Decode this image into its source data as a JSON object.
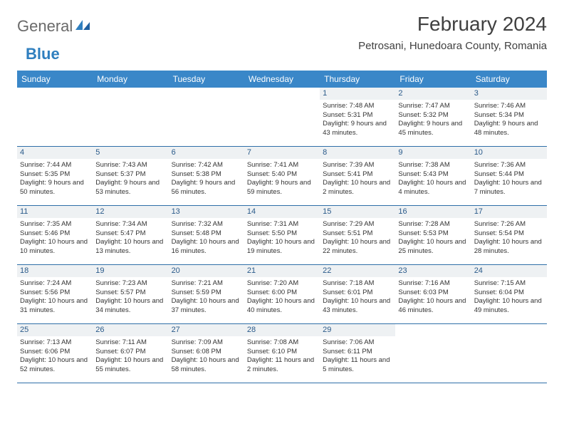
{
  "logo": {
    "part1": "General",
    "part2": "Blue"
  },
  "title": "February 2024",
  "location": "Petrosani, Hunedoara County, Romania",
  "colors": {
    "header_bg": "#3a87c8",
    "header_text": "#ffffff",
    "daynum_bg": "#eef1f3",
    "daynum_text": "#2a5a8a",
    "border": "#2f6fa8",
    "body_text": "#333333",
    "logo_gray": "#6a6a6a",
    "logo_blue": "#2f7fbf"
  },
  "day_headers": [
    "Sunday",
    "Monday",
    "Tuesday",
    "Wednesday",
    "Thursday",
    "Friday",
    "Saturday"
  ],
  "weeks": [
    [
      {
        "n": "",
        "sunrise": "",
        "sunset": "",
        "daylight": ""
      },
      {
        "n": "",
        "sunrise": "",
        "sunset": "",
        "daylight": ""
      },
      {
        "n": "",
        "sunrise": "",
        "sunset": "",
        "daylight": ""
      },
      {
        "n": "",
        "sunrise": "",
        "sunset": "",
        "daylight": ""
      },
      {
        "n": "1",
        "sunrise": "Sunrise: 7:48 AM",
        "sunset": "Sunset: 5:31 PM",
        "daylight": "Daylight: 9 hours and 43 minutes."
      },
      {
        "n": "2",
        "sunrise": "Sunrise: 7:47 AM",
        "sunset": "Sunset: 5:32 PM",
        "daylight": "Daylight: 9 hours and 45 minutes."
      },
      {
        "n": "3",
        "sunrise": "Sunrise: 7:46 AM",
        "sunset": "Sunset: 5:34 PM",
        "daylight": "Daylight: 9 hours and 48 minutes."
      }
    ],
    [
      {
        "n": "4",
        "sunrise": "Sunrise: 7:44 AM",
        "sunset": "Sunset: 5:35 PM",
        "daylight": "Daylight: 9 hours and 50 minutes."
      },
      {
        "n": "5",
        "sunrise": "Sunrise: 7:43 AM",
        "sunset": "Sunset: 5:37 PM",
        "daylight": "Daylight: 9 hours and 53 minutes."
      },
      {
        "n": "6",
        "sunrise": "Sunrise: 7:42 AM",
        "sunset": "Sunset: 5:38 PM",
        "daylight": "Daylight: 9 hours and 56 minutes."
      },
      {
        "n": "7",
        "sunrise": "Sunrise: 7:41 AM",
        "sunset": "Sunset: 5:40 PM",
        "daylight": "Daylight: 9 hours and 59 minutes."
      },
      {
        "n": "8",
        "sunrise": "Sunrise: 7:39 AM",
        "sunset": "Sunset: 5:41 PM",
        "daylight": "Daylight: 10 hours and 2 minutes."
      },
      {
        "n": "9",
        "sunrise": "Sunrise: 7:38 AM",
        "sunset": "Sunset: 5:43 PM",
        "daylight": "Daylight: 10 hours and 4 minutes."
      },
      {
        "n": "10",
        "sunrise": "Sunrise: 7:36 AM",
        "sunset": "Sunset: 5:44 PM",
        "daylight": "Daylight: 10 hours and 7 minutes."
      }
    ],
    [
      {
        "n": "11",
        "sunrise": "Sunrise: 7:35 AM",
        "sunset": "Sunset: 5:46 PM",
        "daylight": "Daylight: 10 hours and 10 minutes."
      },
      {
        "n": "12",
        "sunrise": "Sunrise: 7:34 AM",
        "sunset": "Sunset: 5:47 PM",
        "daylight": "Daylight: 10 hours and 13 minutes."
      },
      {
        "n": "13",
        "sunrise": "Sunrise: 7:32 AM",
        "sunset": "Sunset: 5:48 PM",
        "daylight": "Daylight: 10 hours and 16 minutes."
      },
      {
        "n": "14",
        "sunrise": "Sunrise: 7:31 AM",
        "sunset": "Sunset: 5:50 PM",
        "daylight": "Daylight: 10 hours and 19 minutes."
      },
      {
        "n": "15",
        "sunrise": "Sunrise: 7:29 AM",
        "sunset": "Sunset: 5:51 PM",
        "daylight": "Daylight: 10 hours and 22 minutes."
      },
      {
        "n": "16",
        "sunrise": "Sunrise: 7:28 AM",
        "sunset": "Sunset: 5:53 PM",
        "daylight": "Daylight: 10 hours and 25 minutes."
      },
      {
        "n": "17",
        "sunrise": "Sunrise: 7:26 AM",
        "sunset": "Sunset: 5:54 PM",
        "daylight": "Daylight: 10 hours and 28 minutes."
      }
    ],
    [
      {
        "n": "18",
        "sunrise": "Sunrise: 7:24 AM",
        "sunset": "Sunset: 5:56 PM",
        "daylight": "Daylight: 10 hours and 31 minutes."
      },
      {
        "n": "19",
        "sunrise": "Sunrise: 7:23 AM",
        "sunset": "Sunset: 5:57 PM",
        "daylight": "Daylight: 10 hours and 34 minutes."
      },
      {
        "n": "20",
        "sunrise": "Sunrise: 7:21 AM",
        "sunset": "Sunset: 5:59 PM",
        "daylight": "Daylight: 10 hours and 37 minutes."
      },
      {
        "n": "21",
        "sunrise": "Sunrise: 7:20 AM",
        "sunset": "Sunset: 6:00 PM",
        "daylight": "Daylight: 10 hours and 40 minutes."
      },
      {
        "n": "22",
        "sunrise": "Sunrise: 7:18 AM",
        "sunset": "Sunset: 6:01 PM",
        "daylight": "Daylight: 10 hours and 43 minutes."
      },
      {
        "n": "23",
        "sunrise": "Sunrise: 7:16 AM",
        "sunset": "Sunset: 6:03 PM",
        "daylight": "Daylight: 10 hours and 46 minutes."
      },
      {
        "n": "24",
        "sunrise": "Sunrise: 7:15 AM",
        "sunset": "Sunset: 6:04 PM",
        "daylight": "Daylight: 10 hours and 49 minutes."
      }
    ],
    [
      {
        "n": "25",
        "sunrise": "Sunrise: 7:13 AM",
        "sunset": "Sunset: 6:06 PM",
        "daylight": "Daylight: 10 hours and 52 minutes."
      },
      {
        "n": "26",
        "sunrise": "Sunrise: 7:11 AM",
        "sunset": "Sunset: 6:07 PM",
        "daylight": "Daylight: 10 hours and 55 minutes."
      },
      {
        "n": "27",
        "sunrise": "Sunrise: 7:09 AM",
        "sunset": "Sunset: 6:08 PM",
        "daylight": "Daylight: 10 hours and 58 minutes."
      },
      {
        "n": "28",
        "sunrise": "Sunrise: 7:08 AM",
        "sunset": "Sunset: 6:10 PM",
        "daylight": "Daylight: 11 hours and 2 minutes."
      },
      {
        "n": "29",
        "sunrise": "Sunrise: 7:06 AM",
        "sunset": "Sunset: 6:11 PM",
        "daylight": "Daylight: 11 hours and 5 minutes."
      },
      {
        "n": "",
        "sunrise": "",
        "sunset": "",
        "daylight": ""
      },
      {
        "n": "",
        "sunrise": "",
        "sunset": "",
        "daylight": ""
      }
    ]
  ]
}
